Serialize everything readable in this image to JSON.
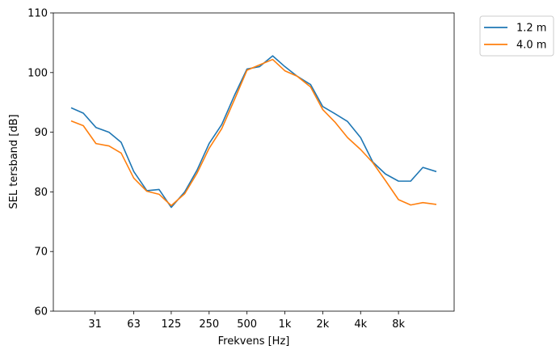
{
  "chart_data": {
    "type": "line",
    "title": "",
    "xlabel": "Frekvens [Hz]",
    "ylabel": "SEL tersband [dB]",
    "ylim": [
      60,
      110
    ],
    "y_ticks": [
      60,
      70,
      80,
      90,
      100,
      110
    ],
    "x_scale": "log",
    "x_ticks": [
      31,
      63,
      125,
      250,
      500,
      1000,
      2000,
      4000,
      8000
    ],
    "x_tick_labels": [
      "31",
      "63",
      "125",
      "250",
      "500",
      "1k",
      "2k",
      "4k",
      "8k"
    ],
    "x": [
      20,
      25,
      31.5,
      40,
      50,
      63,
      80,
      100,
      125,
      160,
      200,
      250,
      315,
      400,
      500,
      630,
      800,
      1000,
      1250,
      1600,
      2000,
      2500,
      3150,
      4000,
      5000,
      6300,
      8000,
      10000,
      12500,
      16000
    ],
    "series": [
      {
        "name": "1.2 m",
        "color": "#1f77b4",
        "values": [
          94.1,
          93.2,
          90.8,
          90.0,
          88.3,
          83.4,
          80.2,
          80.4,
          77.4,
          80.0,
          83.6,
          88.1,
          91.3,
          96.3,
          100.6,
          101.0,
          102.8,
          101.0,
          99.4,
          98.0,
          94.3,
          93.1,
          91.8,
          89.1,
          85.0,
          83.0,
          81.8,
          81.8,
          84.1,
          83.4
        ]
      },
      {
        "name": "4.0 m",
        "color": "#ff7f0e",
        "values": [
          91.9,
          91.1,
          88.1,
          87.7,
          86.5,
          82.3,
          80.1,
          79.6,
          77.7,
          79.7,
          83.1,
          87.3,
          90.6,
          95.6,
          100.4,
          101.3,
          102.2,
          100.3,
          99.4,
          97.6,
          93.8,
          91.7,
          89.1,
          87.1,
          84.9,
          81.9,
          78.7,
          77.8,
          78.2,
          77.9
        ]
      }
    ],
    "legend": {
      "position": "outside-top-right"
    },
    "grid": false
  }
}
